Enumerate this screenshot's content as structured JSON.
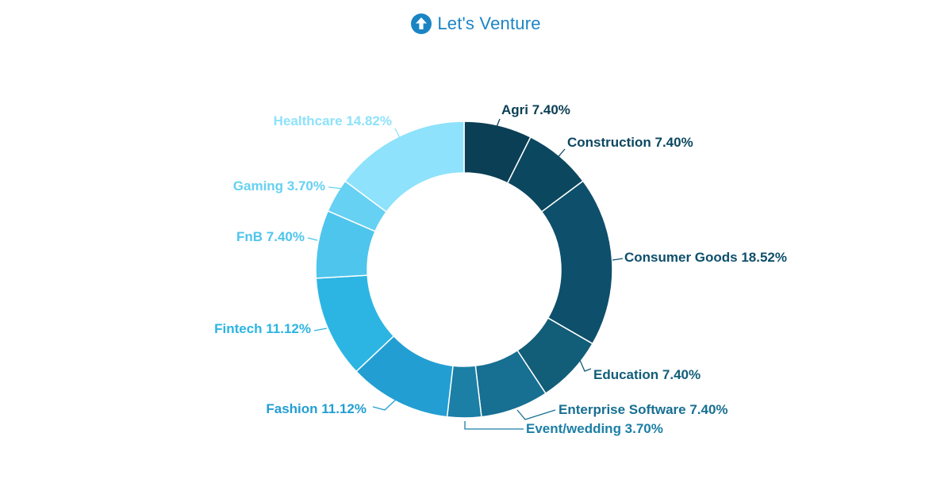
{
  "brand": {
    "name": "Let's Venture",
    "icon": "up-arrow-circle-icon",
    "color": "#1b85c4"
  },
  "chart_data": {
    "type": "pie",
    "donut": true,
    "slices": [
      {
        "label": "Agri 7.40%",
        "name": "Agri",
        "value": 7.4,
        "color": "#0b3f55"
      },
      {
        "label": "Construction 7.40%",
        "name": "Construction",
        "value": 7.4,
        "color": "#0c4760"
      },
      {
        "label": "Consumer Goods 18.52%",
        "name": "Consumer Goods",
        "value": 18.52,
        "color": "#0e4f6b"
      },
      {
        "label": "Education 7.40%",
        "name": "Education",
        "value": 7.4,
        "color": "#125d78"
      },
      {
        "label": "Enterprise Software 7.40%",
        "name": "Enterprise Software",
        "value": 7.4,
        "color": "#176f92"
      },
      {
        "label": "Event/wedding 3.70%",
        "name": "Event/wedding",
        "value": 3.7,
        "color": "#1b7fa6"
      },
      {
        "label": "Fashion 11.12%",
        "name": "Fashion",
        "value": 11.12,
        "color": "#239ed3"
      },
      {
        "label": "Fintech 11.12%",
        "name": "Fintech",
        "value": 11.12,
        "color": "#2cb5e3"
      },
      {
        "label": "FnB 7.40%",
        "name": "FnB",
        "value": 7.4,
        "color": "#4ec5ec"
      },
      {
        "label": "Gaming 3.70%",
        "name": "Gaming",
        "value": 3.7,
        "color": "#66d1f2"
      },
      {
        "label": "Healthcare 14.82%",
        "name": "Healthcare",
        "value": 14.82,
        "color": "#8ee2fb"
      }
    ],
    "label_colors": [
      "#0b3f55",
      "#0c4760",
      "#0e4f6b",
      "#125d78",
      "#176f92",
      "#1b7fa6",
      "#239ed3",
      "#2cb5e3",
      "#4ec5ec",
      "#66d1f2",
      "#8ee2fb"
    ]
  }
}
